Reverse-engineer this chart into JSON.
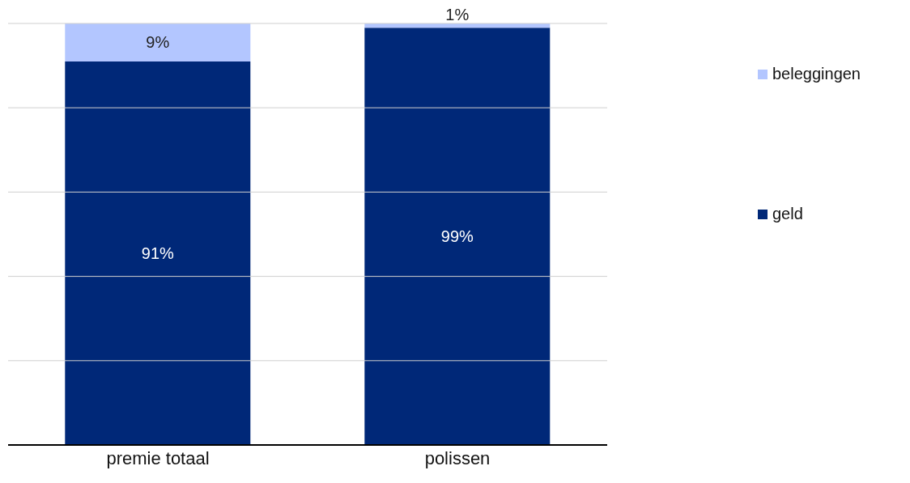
{
  "chart_data": {
    "type": "bar",
    "stacked": true,
    "categories": [
      "premie totaal",
      "polissen"
    ],
    "series": [
      {
        "name": "geld",
        "color": "#002878",
        "values": [
          91,
          99
        ],
        "value_labels": [
          "91%",
          "99%"
        ]
      },
      {
        "name": "beleggingen",
        "color": "#b3c6ff",
        "values": [
          9,
          1
        ],
        "value_labels": [
          "9%",
          "1%"
        ]
      }
    ],
    "ylim": [
      0,
      100
    ],
    "yticks": [
      {
        "value": 0,
        "label": null
      },
      {
        "value": 20,
        "label": null
      },
      {
        "value": 40,
        "label": null
      },
      {
        "value": 60,
        "label": null
      },
      {
        "value": 80,
        "label": null
      },
      {
        "value": 100,
        "label": null
      }
    ],
    "grid": "y",
    "tick_labels": "x",
    "legend": "right"
  }
}
